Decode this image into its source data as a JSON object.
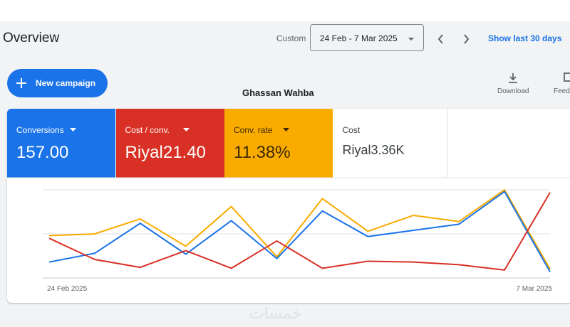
{
  "header": {
    "title": "Overview",
    "range_label": "Custom",
    "date_range": "24 Feb - 7 Mar 2025",
    "show_last": "Show last 30 days"
  },
  "toolbar": {
    "new_campaign": "New campaign",
    "account": "Ghassan Wahba",
    "download": "Download",
    "feedback": "Feed"
  },
  "metrics": [
    {
      "label": "Conversions",
      "value": "157.00",
      "color": "#1a73e8"
    },
    {
      "label": "Cost / conv.",
      "value": "Riyal21.40",
      "color": "#d93025"
    },
    {
      "label": "Conv. rate",
      "value": "11.38%",
      "color": "#f9ab00"
    },
    {
      "label": "Cost",
      "value": "Riyal3.36K",
      "color": "#ffffff"
    }
  ],
  "chart_data": {
    "type": "line",
    "categories": [
      "24 Feb 2025",
      null,
      null,
      null,
      null,
      null,
      null,
      null,
      null,
      null,
      null,
      "7 Mar 2025"
    ],
    "ylim": [
      0,
      100
    ],
    "series": [
      {
        "color": "#f9ab00",
        "values": [
          48,
          50,
          67,
          36,
          81,
          24,
          90,
          53,
          71,
          64,
          100,
          10
        ]
      },
      {
        "color": "#1a73e8",
        "values": [
          18,
          28,
          62,
          27,
          65,
          22,
          76,
          47,
          54,
          61,
          98,
          7
        ]
      },
      {
        "color": "#d93025",
        "values": [
          45,
          21,
          12,
          31,
          11,
          42,
          11,
          19,
          18,
          15,
          9,
          97
        ]
      }
    ]
  },
  "watermark": "خمسات"
}
